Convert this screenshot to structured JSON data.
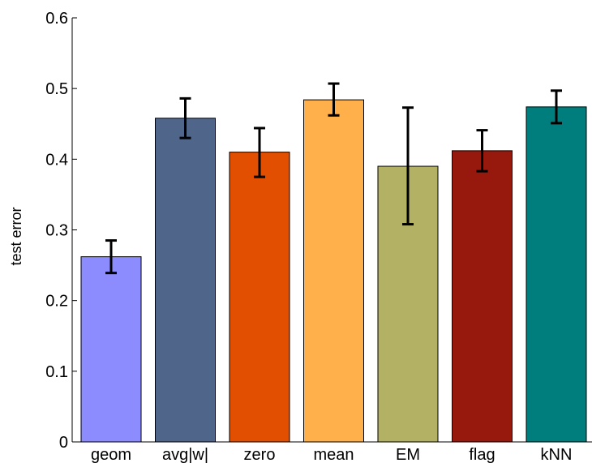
{
  "chart_data": {
    "type": "bar",
    "title": "",
    "xlabel": "",
    "ylabel": "test error",
    "ylim": [
      0,
      0.6
    ],
    "yticks": [
      0,
      0.1,
      0.2,
      0.3,
      0.4,
      0.5,
      0.6
    ],
    "ytick_labels": [
      "0",
      "0.1",
      "0.2",
      "0.3",
      "0.4",
      "0.5",
      "0.6"
    ],
    "grid": false,
    "categories": [
      "geom",
      "avg|w|",
      "zero",
      "mean",
      "EM",
      "flag",
      "kNN"
    ],
    "values": [
      0.262,
      0.458,
      0.41,
      0.484,
      0.39,
      0.412,
      0.474
    ],
    "error_low": [
      0.239,
      0.43,
      0.375,
      0.462,
      0.308,
      0.383,
      0.451
    ],
    "error_high": [
      0.285,
      0.486,
      0.444,
      0.507,
      0.473,
      0.441,
      0.497
    ],
    "colors": [
      "#8c8cff",
      "#4f6589",
      "#e34f00",
      "#ffb04a",
      "#b2b164",
      "#97190e",
      "#007e7d"
    ]
  }
}
